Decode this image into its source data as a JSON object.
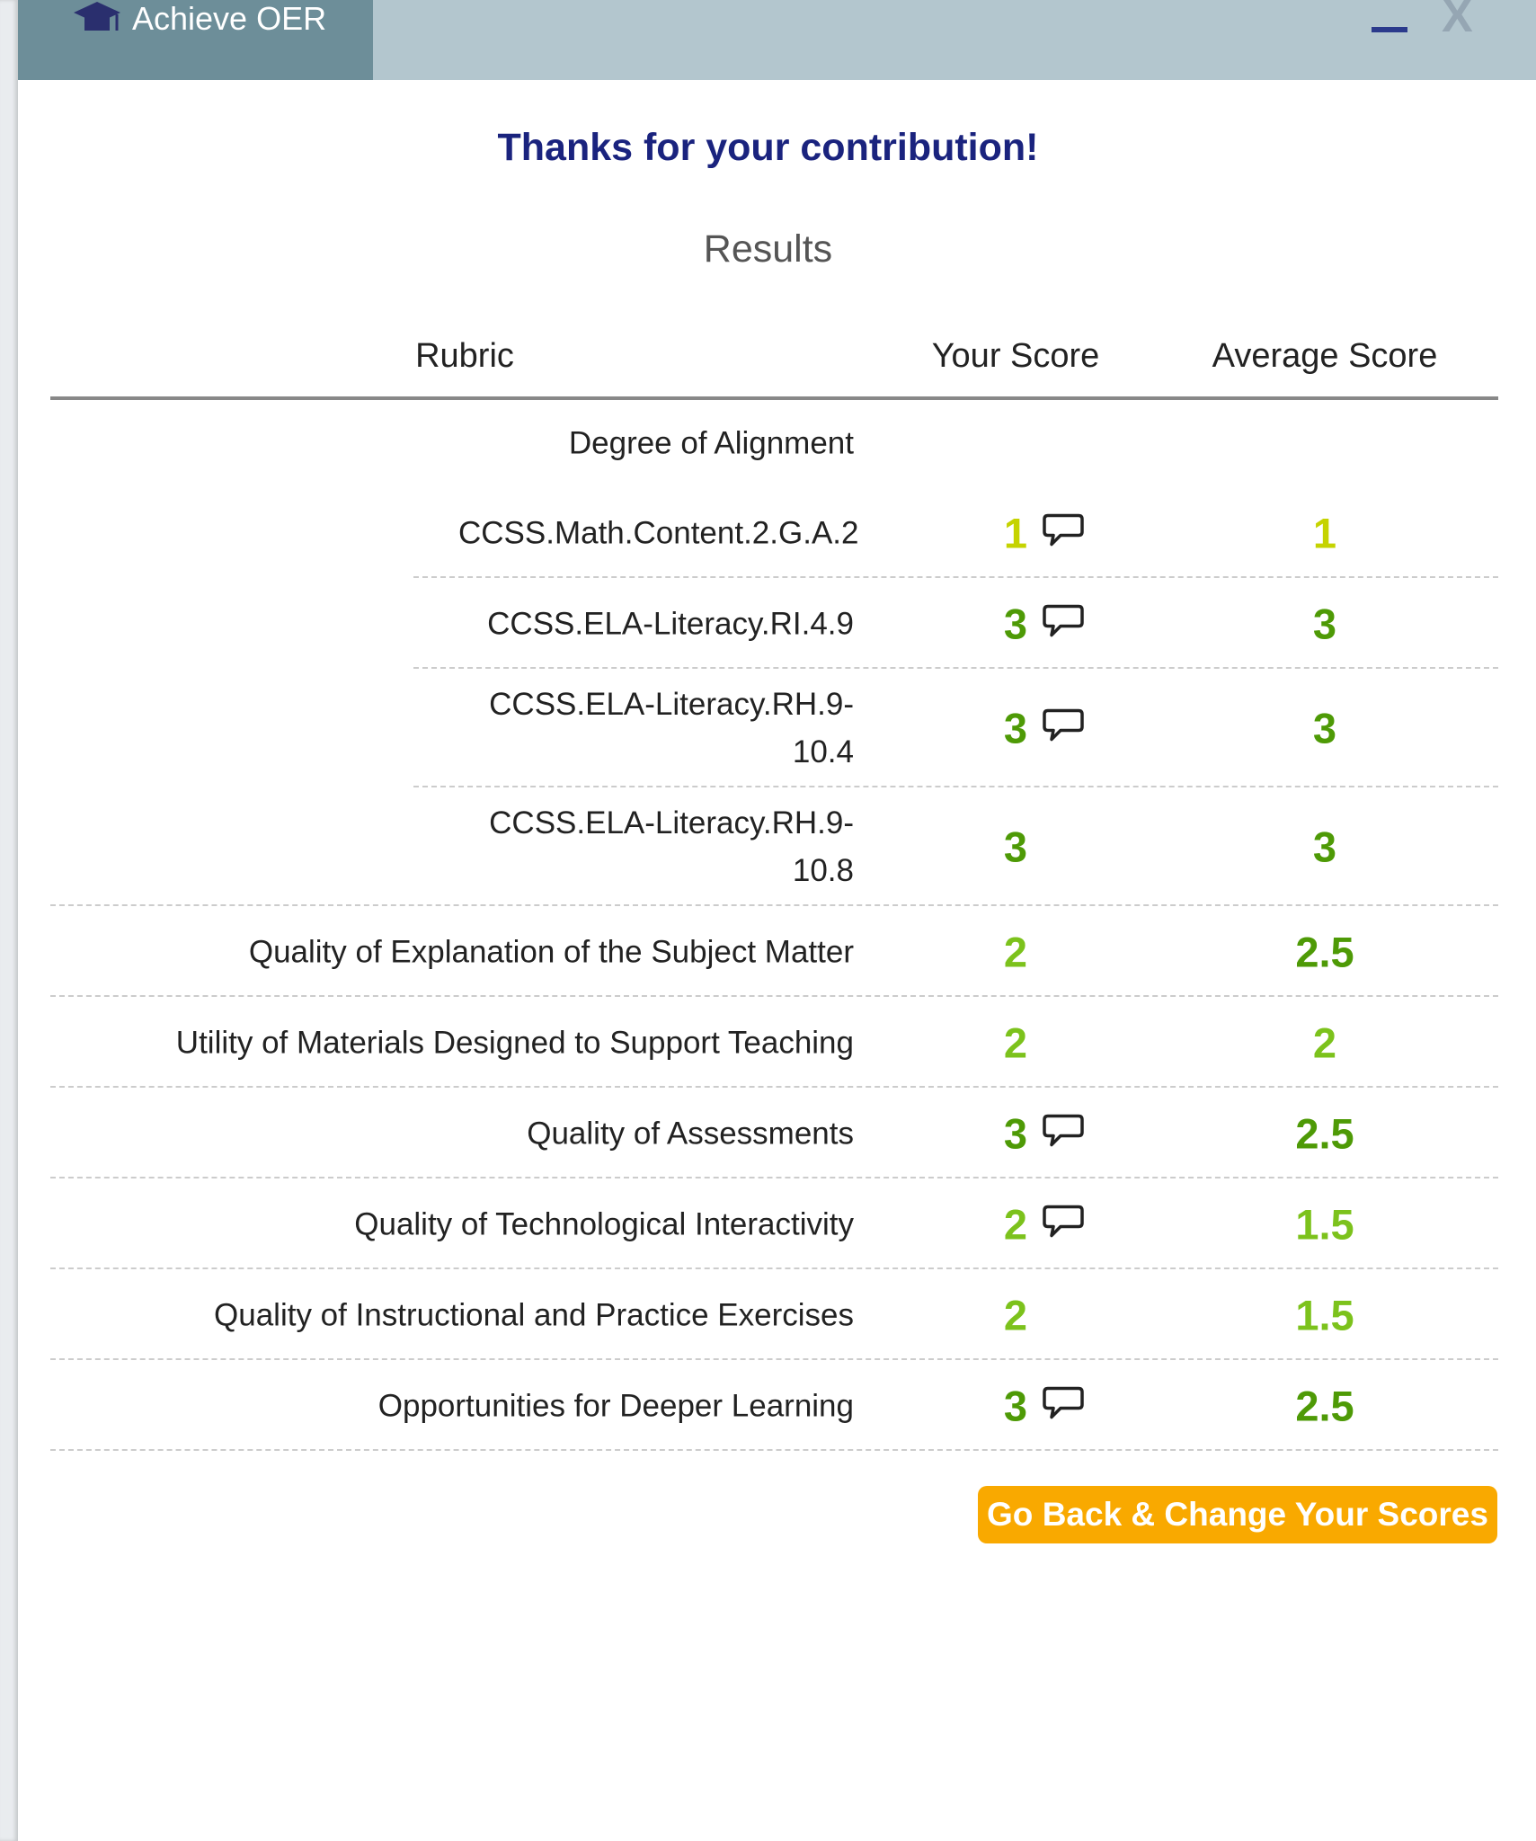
{
  "header": {
    "app_title": "Achieve OER"
  },
  "title": "Thanks for your contribution!",
  "subtitle": "Results",
  "table": {
    "columns": [
      "Rubric",
      "Your Score",
      "Average Score"
    ],
    "rows": [
      {
        "label": "Degree of Alignment",
        "group": true
      },
      {
        "label": "CCSS.Math.Content.2.G.A.2",
        "your_score": 1,
        "average_score": 1,
        "comment": true,
        "sub": true,
        "your_color": "#c5d300",
        "average_color": "#c5d300"
      },
      {
        "label": "CCSS.ELA-Literacy.RI.4.9",
        "your_score": 3,
        "average_score": 3,
        "comment": true,
        "sub": true,
        "your_color": "#4e9a06",
        "average_color": "#4e9a06"
      },
      {
        "label": "CCSS.ELA-Literacy.RH.9-10.4",
        "your_score": 3,
        "average_score": 3,
        "comment": true,
        "sub": true,
        "your_color": "#4e9a06",
        "average_color": "#4e9a06"
      },
      {
        "label": "CCSS.ELA-Literacy.RH.9-10.8",
        "your_score": 3,
        "average_score": 3,
        "comment": false,
        "sub": true,
        "your_color": "#4e9a06",
        "average_color": "#4e9a06"
      },
      {
        "label": "Quality of Explanation of the Subject Matter",
        "your_score": 2,
        "average_score": 2.5,
        "comment": false,
        "your_color": "#7cc21c",
        "average_color": "#4e9a06"
      },
      {
        "label": "Utility of Materials Designed to Support Teaching",
        "your_score": 2,
        "average_score": 2,
        "comment": false,
        "your_color": "#7cc21c",
        "average_color": "#7cc21c"
      },
      {
        "label": "Quality of Assessments",
        "your_score": 3,
        "average_score": 2.5,
        "comment": true,
        "your_color": "#4e9a06",
        "average_color": "#4e9a06"
      },
      {
        "label": "Quality of Technological Interactivity",
        "your_score": 2,
        "average_score": 1.5,
        "comment": true,
        "your_color": "#7cc21c",
        "average_color": "#7cc21c"
      },
      {
        "label": "Quality of Instructional and Practice Exercises",
        "your_score": 2,
        "average_score": 1.5,
        "comment": false,
        "your_color": "#7cc21c",
        "average_color": "#7cc21c"
      },
      {
        "label": "Opportunities for Deeper Learning",
        "your_score": 3,
        "average_score": 2.5,
        "comment": true,
        "your_color": "#4e9a06",
        "average_color": "#4e9a06"
      }
    ]
  },
  "button": "Go Back & Change Your Scores"
}
